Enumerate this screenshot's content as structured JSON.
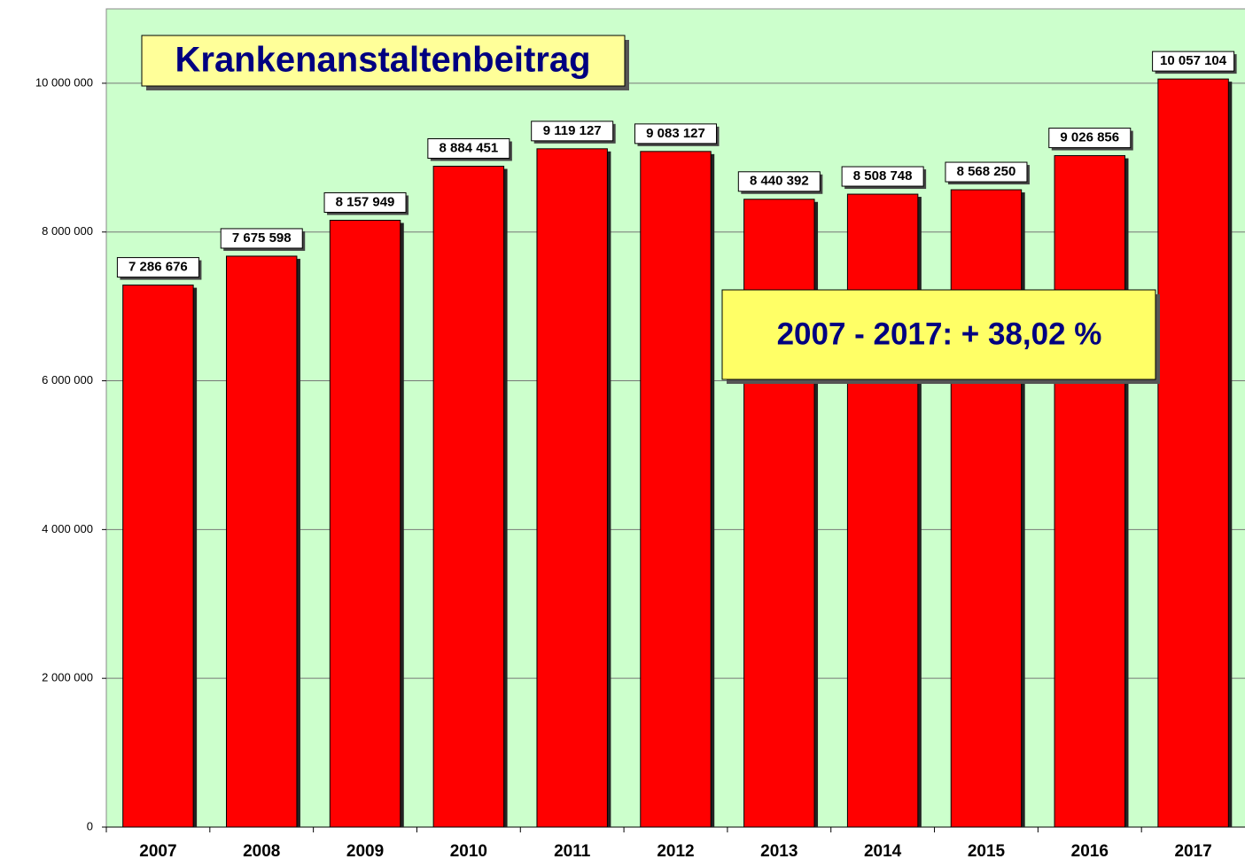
{
  "chart_data": {
    "type": "bar",
    "title": "Krankenanstaltenbeitrag",
    "annotation": "2007 - 2017: + 38,02 %",
    "categories": [
      "2007",
      "2008",
      "2009",
      "2010",
      "2011",
      "2012",
      "2013",
      "2014",
      "2015",
      "2016",
      "2017"
    ],
    "values": [
      7286676,
      7675598,
      8157949,
      8884451,
      9119127,
      9083127,
      8440392,
      8508748,
      8568250,
      9026856,
      10057104
    ],
    "value_labels": [
      "7 286 676",
      "7 675 598",
      "8 157 949",
      "8 884 451",
      "9 119 127",
      "9 083 127",
      "8 440 392",
      "8 508 748",
      "8 568 250",
      "9 026 856",
      "10 057 104"
    ],
    "color": "#ff0000",
    "ylim": [
      0,
      11000000
    ],
    "yticks": [
      0,
      {
        "value": 2000000,
        "label": "2 000 000"
      },
      {
        "value": 4000000,
        "label": "4 000 000"
      },
      {
        "value": 6000000,
        "label": "6 000 000"
      },
      {
        "value": 8000000,
        "label": "8 000 000"
      },
      {
        "value": 10000000,
        "label": "10 000 000"
      }
    ],
    "grid": true
  }
}
